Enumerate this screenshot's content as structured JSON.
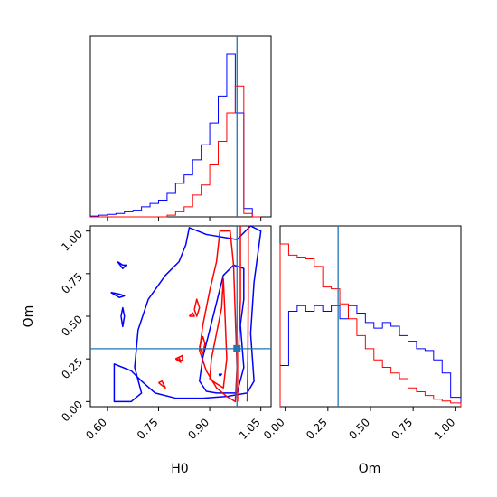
{
  "chart_data": {
    "type": "corner",
    "parameters": [
      "H0",
      "Om"
    ],
    "truth": {
      "H0": 0.98,
      "Om": 0.31
    },
    "colors": {
      "blue_series": "#0000ff",
      "red_series": "#ff0000",
      "truth": "#1f77b4"
    },
    "panels": {
      "hist_H0": {
        "xlim": [
          0.55,
          1.08
        ],
        "bin_edges": [
          0.55,
          0.575,
          0.6,
          0.625,
          0.65,
          0.675,
          0.7,
          0.725,
          0.75,
          0.775,
          0.8,
          0.825,
          0.85,
          0.875,
          0.9,
          0.925,
          0.95,
          0.975,
          1.0,
          1.025,
          1.05
        ],
        "blue_counts": [
          0.005,
          0.01,
          0.015,
          0.02,
          0.03,
          0.04,
          0.06,
          0.08,
          0.1,
          0.14,
          0.2,
          0.25,
          0.34,
          0.43,
          0.56,
          0.72,
          0.97,
          0.62,
          0.05,
          0.0
        ],
        "red_counts": [
          0,
          0,
          0,
          0,
          0,
          0,
          0,
          0,
          0,
          0.01,
          0.03,
          0.06,
          0.13,
          0.19,
          0.31,
          0.45,
          0.62,
          0.78,
          0.02,
          0.0
        ]
      },
      "hist_Om": {
        "xlim": [
          -0.03,
          1.03
        ],
        "bin_edges": [
          -0.03,
          0.02,
          0.07,
          0.12,
          0.17,
          0.22,
          0.27,
          0.32,
          0.37,
          0.42,
          0.47,
          0.52,
          0.57,
          0.62,
          0.67,
          0.72,
          0.77,
          0.82,
          0.87,
          0.92,
          0.97,
          1.03
        ],
        "blue_counts": [
          0.22,
          0.51,
          0.54,
          0.51,
          0.54,
          0.51,
          0.54,
          0.47,
          0.54,
          0.5,
          0.45,
          0.42,
          0.45,
          0.43,
          0.38,
          0.35,
          0.31,
          0.3,
          0.25,
          0.18,
          0.05
        ],
        "red_counts": [
          0.87,
          0.81,
          0.8,
          0.79,
          0.75,
          0.64,
          0.63,
          0.55,
          0.47,
          0.38,
          0.31,
          0.25,
          0.21,
          0.18,
          0.15,
          0.1,
          0.08,
          0.06,
          0.04,
          0.03,
          0.02
        ]
      },
      "contour_H0_Om": {
        "xlim": [
          0.55,
          1.08
        ],
        "ylim": [
          -0.03,
          1.03
        ],
        "blue_contours": [
          [
            [
              0.95,
              0.03
            ],
            [
              1.01,
              0.05
            ],
            [
              1.03,
              0.12
            ],
            [
              1.02,
              0.4
            ],
            [
              1.03,
              0.7
            ],
            [
              1.05,
              1.0
            ],
            [
              1.02,
              1.03
            ],
            [
              0.98,
              0.95
            ],
            [
              0.89,
              0.98
            ],
            [
              0.84,
              1.02
            ],
            [
              0.83,
              0.92
            ],
            [
              0.81,
              0.82
            ],
            [
              0.77,
              0.74
            ],
            [
              0.72,
              0.6
            ],
            [
              0.69,
              0.42
            ],
            [
              0.68,
              0.2
            ],
            [
              0.7,
              0.05
            ],
            [
              0.67,
              0.0
            ],
            [
              0.62,
              0.0
            ],
            [
              0.62,
              0.18
            ],
            [
              0.62,
              0.22
            ],
            [
              0.67,
              0.18
            ],
            [
              0.7,
              0.12
            ],
            [
              0.74,
              0.05
            ],
            [
              0.8,
              0.02
            ],
            [
              0.88,
              0.02
            ],
            [
              0.95,
              0.03
            ]
          ],
          [
            [
              0.92,
              0.05
            ],
            [
              0.98,
              0.05
            ],
            [
              1.0,
              0.2
            ],
            [
              0.99,
              0.45
            ],
            [
              1.0,
              0.6
            ],
            [
              1.0,
              0.78
            ],
            [
              0.97,
              0.8
            ],
            [
              0.94,
              0.74
            ],
            [
              0.92,
              0.58
            ],
            [
              0.9,
              0.42
            ],
            [
              0.88,
              0.26
            ],
            [
              0.87,
              0.12
            ],
            [
              0.89,
              0.06
            ],
            [
              0.92,
              0.05
            ]
          ],
          [
            [
              0.63,
              0.82
            ],
            [
              0.645,
              0.8
            ],
            [
              0.655,
              0.8
            ],
            [
              0.645,
              0.78
            ],
            [
              0.63,
              0.82
            ]
          ],
          [
            [
              0.61,
              0.64
            ],
            [
              0.635,
              0.63
            ],
            [
              0.65,
              0.62
            ],
            [
              0.635,
              0.61
            ],
            [
              0.61,
              0.64
            ]
          ],
          [
            [
              0.64,
              0.5
            ],
            [
              0.645,
              0.44
            ],
            [
              0.65,
              0.5
            ],
            [
              0.645,
              0.55
            ],
            [
              0.64,
              0.5
            ]
          ],
          [
            [
              0.927,
              0.16
            ],
            [
              0.935,
              0.16
            ],
            [
              0.93,
              0.15
            ],
            [
              0.927,
              0.16
            ]
          ]
        ],
        "red_contours": [
          [
            [
              1.01,
              0.0
            ],
            [
              1.012,
              0.3
            ],
            [
              1.013,
              0.6
            ],
            [
              1.013,
              1.03
            ]
          ],
          [
            [
              0.985,
              0.0
            ],
            [
              0.985,
              0.3
            ],
            [
              0.99,
              0.6
            ],
            [
              0.99,
              1.03
            ]
          ],
          [
            [
              0.95,
              0.03
            ],
            [
              0.975,
              0.0
            ],
            [
              0.98,
              0.2
            ],
            [
              0.975,
              0.5
            ],
            [
              0.97,
              0.8
            ],
            [
              0.96,
              1.0
            ],
            [
              0.93,
              1.0
            ],
            [
              0.92,
              0.82
            ],
            [
              0.9,
              0.65
            ],
            [
              0.88,
              0.45
            ],
            [
              0.87,
              0.3
            ],
            [
              0.89,
              0.18
            ],
            [
              0.92,
              0.08
            ],
            [
              0.95,
              0.03
            ]
          ],
          [
            [
              0.9,
              0.13
            ],
            [
              0.94,
              0.08
            ],
            [
              0.95,
              0.25
            ],
            [
              0.945,
              0.5
            ],
            [
              0.94,
              0.72
            ],
            [
              0.935,
              0.55
            ],
            [
              0.92,
              0.4
            ],
            [
              0.905,
              0.25
            ],
            [
              0.9,
              0.13
            ]
          ],
          [
            [
              0.75,
              0.11
            ],
            [
              0.77,
              0.08
            ],
            [
              0.76,
              0.12
            ],
            [
              0.75,
              0.11
            ]
          ],
          [
            [
              0.8,
              0.25
            ],
            [
              0.815,
              0.23
            ],
            [
              0.81,
              0.26
            ],
            [
              0.8,
              0.25
            ]
          ],
          [
            [
              0.855,
              0.54
            ],
            [
              0.862,
              0.5
            ],
            [
              0.87,
              0.55
            ],
            [
              0.862,
              0.6
            ],
            [
              0.855,
              0.54
            ]
          ],
          [
            [
              0.87,
              0.32
            ],
            [
              0.88,
              0.28
            ],
            [
              0.886,
              0.34
            ],
            [
              0.88,
              0.38
            ],
            [
              0.87,
              0.32
            ]
          ],
          [
            [
              0.84,
              0.5
            ],
            [
              0.855,
              0.5
            ],
            [
              0.85,
              0.52
            ],
            [
              0.84,
              0.5
            ]
          ],
          [
            [
              0.8,
              0.25
            ],
            [
              0.82,
              0.24
            ],
            [
              0.82,
              0.27
            ],
            [
              0.8,
              0.25
            ]
          ]
        ]
      }
    },
    "tick_labels": {
      "H0": [
        "0.60",
        "0.75",
        "0.90",
        "1.05"
      ],
      "H0_values": [
        0.6,
        0.75,
        0.9,
        1.05
      ],
      "Om": [
        "0.00",
        "0.25",
        "0.50",
        "0.75",
        "1.00"
      ],
      "Om_values": [
        0.0,
        0.25,
        0.5,
        0.75,
        1.0
      ]
    },
    "xlabel_left": "H0",
    "xlabel_right": "Om",
    "ylabel": "Om"
  }
}
